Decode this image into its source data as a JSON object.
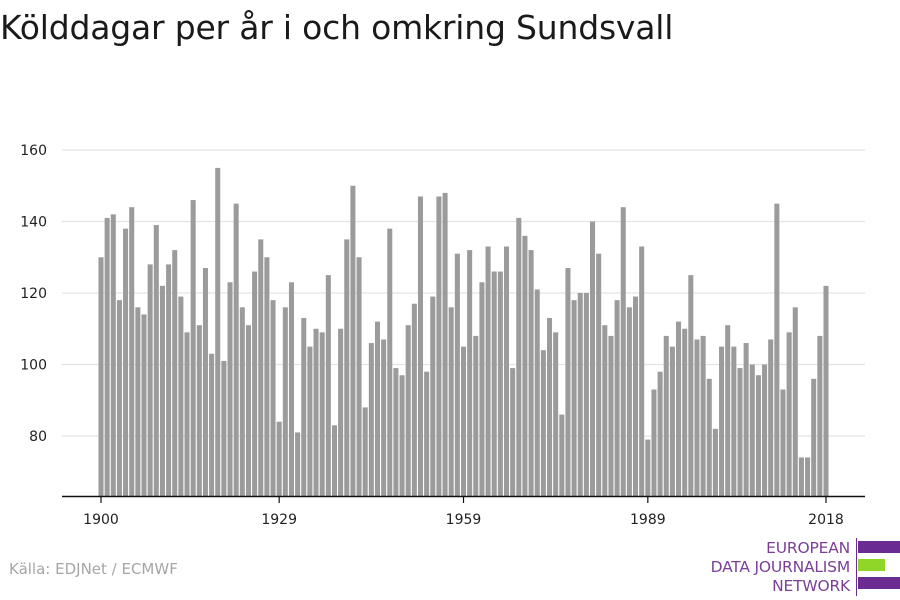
{
  "chart_data": {
    "type": "bar",
    "title": "Kölddagar per år i och omkring Sundsvall",
    "xlabel": "",
    "ylabel": "",
    "x_ticks": [
      "1900",
      "1929",
      "1959",
      "1989",
      "2018"
    ],
    "y_ticks": [
      80,
      100,
      120,
      140,
      160
    ],
    "ylim": [
      63,
      166
    ],
    "xlim": [
      1900,
      2018
    ],
    "grid": true,
    "bar_color": "#9b9b9b",
    "years": [
      1900,
      1901,
      1902,
      1903,
      1904,
      1905,
      1906,
      1907,
      1908,
      1909,
      1910,
      1911,
      1912,
      1913,
      1914,
      1915,
      1916,
      1917,
      1918,
      1919,
      1920,
      1921,
      1922,
      1923,
      1924,
      1925,
      1926,
      1927,
      1928,
      1929,
      1930,
      1931,
      1932,
      1933,
      1934,
      1935,
      1936,
      1937,
      1938,
      1939,
      1940,
      1941,
      1942,
      1943,
      1944,
      1945,
      1946,
      1947,
      1948,
      1949,
      1950,
      1951,
      1952,
      1953,
      1954,
      1955,
      1956,
      1957,
      1958,
      1959,
      1960,
      1961,
      1962,
      1963,
      1964,
      1965,
      1966,
      1967,
      1968,
      1969,
      1970,
      1971,
      1972,
      1973,
      1974,
      1975,
      1976,
      1977,
      1978,
      1979,
      1980,
      1981,
      1982,
      1983,
      1984,
      1985,
      1986,
      1987,
      1988,
      1989,
      1990,
      1991,
      1992,
      1993,
      1994,
      1995,
      1996,
      1997,
      1998,
      1999,
      2000,
      2001,
      2002,
      2003,
      2004,
      2005,
      2006,
      2007,
      2008,
      2009,
      2010,
      2011,
      2012,
      2013,
      2014,
      2015,
      2016,
      2017,
      2018
    ],
    "values": [
      130,
      141,
      142,
      118,
      138,
      144,
      116,
      114,
      128,
      139,
      122,
      128,
      132,
      119,
      109,
      146,
      111,
      127,
      103,
      155,
      101,
      123,
      145,
      116,
      111,
      126,
      135,
      130,
      118,
      84,
      116,
      123,
      81,
      113,
      105,
      110,
      109,
      125,
      83,
      110,
      135,
      150,
      130,
      88,
      106,
      112,
      107,
      138,
      99,
      97,
      111,
      117,
      147,
      98,
      119,
      147,
      148,
      116,
      131,
      105,
      132,
      108,
      123,
      133,
      126,
      126,
      133,
      99,
      141,
      136,
      132,
      121,
      104,
      113,
      109,
      86,
      127,
      118,
      120,
      120,
      140,
      131,
      111,
      108,
      118,
      144,
      116,
      119,
      133,
      79,
      93,
      98,
      108,
      105,
      112,
      110,
      125,
      107,
      108,
      96,
      82,
      105,
      111,
      105,
      99,
      106,
      100,
      97,
      100,
      107,
      145,
      93,
      109,
      116,
      74,
      74,
      96,
      108,
      122
    ]
  },
  "source": "Källa: EDJNet / ECMWF",
  "logo": {
    "line1": "EUROPEAN",
    "line2": "DATA JOURNALISM",
    "line3": "NETWORK",
    "colors": {
      "purple": "#6a2c91",
      "green": "#8fd629"
    }
  }
}
